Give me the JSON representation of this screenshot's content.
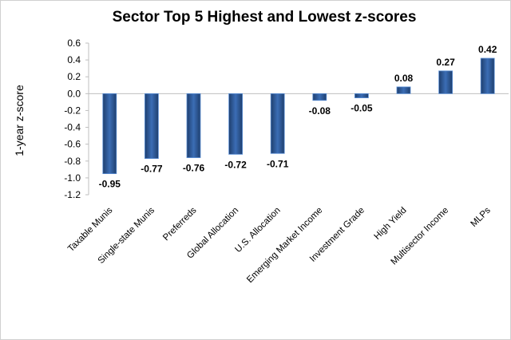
{
  "chart_data": {
    "type": "bar",
    "title": "Sector Top 5 Highest and Lowest z-scores",
    "xlabel": "",
    "ylabel": "1-year z-score",
    "categories": [
      "Taxable Munis",
      "Single-state Munis",
      "Preferreds",
      "Global Allocation",
      "U.S. Allocation",
      "Emerging Market Income",
      "Investment Grade",
      "High Yield",
      "Multisector Income",
      "MLPs"
    ],
    "values": [
      -0.95,
      -0.77,
      -0.76,
      -0.72,
      -0.71,
      -0.08,
      -0.05,
      0.08,
      0.27,
      0.42
    ],
    "data_labels": [
      "-0.95",
      "-0.77",
      "-0.76",
      "-0.72",
      "-0.71",
      "-0.08",
      "-0.05",
      "0.08",
      "0.27",
      "0.42"
    ],
    "ylim": [
      -1.2,
      0.6
    ],
    "yticks": [
      0.6,
      0.4,
      0.2,
      0.0,
      -0.2,
      -0.4,
      -0.6,
      -0.8,
      -1.0,
      -1.2
    ],
    "ytick_labels": [
      "0.6",
      "0.4",
      "0.2",
      "0.0",
      "-0.2",
      "-0.4",
      "-0.6",
      "-0.8",
      "-1.0",
      "-1.2"
    ],
    "grid": false,
    "legend": "none",
    "colors": {
      "bar_dark": "#1f3f6e",
      "bar_mid": "#3b6db5",
      "bar_light": "#5b8fd6",
      "axis": "#bfbfbf"
    }
  }
}
